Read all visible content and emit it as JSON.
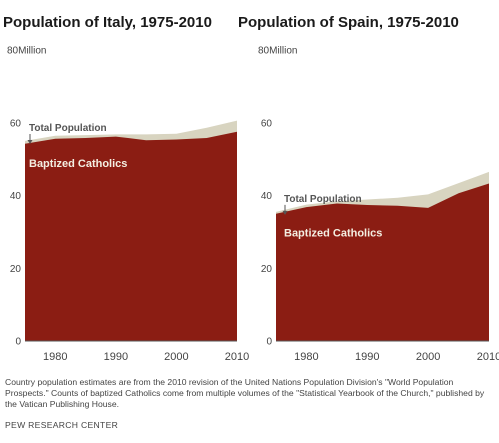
{
  "chart_data": [
    {
      "type": "area",
      "title": "Population of Italy, 1975-2010",
      "y_unit_label": "80Million",
      "ylim": [
        0,
        80
      ],
      "yticks": [
        0,
        20,
        40,
        60
      ],
      "xlim": [
        1975,
        2010
      ],
      "xticks": [
        1980,
        1990,
        2000,
        2010
      ],
      "x": [
        1975,
        1980,
        1985,
        1990,
        1995,
        2000,
        2005,
        2010
      ],
      "series": [
        {
          "name": "Total Population",
          "values": [
            55,
            56.4,
            56.6,
            56.8,
            56.8,
            57.0,
            58.6,
            60.6
          ],
          "color": "#d8d4c0"
        },
        {
          "name": "Baptized Catholics",
          "values": [
            54.2,
            55.6,
            55.8,
            56.2,
            55.2,
            55.4,
            55.8,
            57.5
          ],
          "color": "#8b1d13"
        }
      ],
      "annotations": {
        "total": "Total Population",
        "catholics": "Baptized Catholics"
      }
    },
    {
      "type": "area",
      "title": "Population of Spain, 1975-2010",
      "y_unit_label": "80Million",
      "ylim": [
        0,
        80
      ],
      "yticks": [
        0,
        20,
        40,
        60
      ],
      "xlim": [
        1975,
        2010
      ],
      "xticks": [
        1980,
        1990,
        2000,
        2010
      ],
      "x": [
        1975,
        1980,
        1985,
        1990,
        1995,
        2000,
        2005,
        2010
      ],
      "series": [
        {
          "name": "Total Population",
          "values": [
            35.5,
            37.5,
            38.4,
            38.9,
            39.4,
            40.3,
            43.4,
            46.5
          ],
          "color": "#d8d4c0"
        },
        {
          "name": "Baptized Catholics",
          "values": [
            35.0,
            36.8,
            37.8,
            37.4,
            37.2,
            36.6,
            40.6,
            43.3
          ],
          "color": "#8b1d13"
        }
      ],
      "annotations": {
        "total": "Total Population",
        "catholics": "Baptized Catholics"
      }
    }
  ],
  "note": "Country population estimates are from the 2010 revision of the United Nations Population Division's \"World Population Prospects.\" Counts of baptized Catholics come from multiple volumes of the \"Statistical Yearbook of the Church,\" published by the Vatican Publishing House.",
  "source": "PEW RESEARCH CENTER"
}
